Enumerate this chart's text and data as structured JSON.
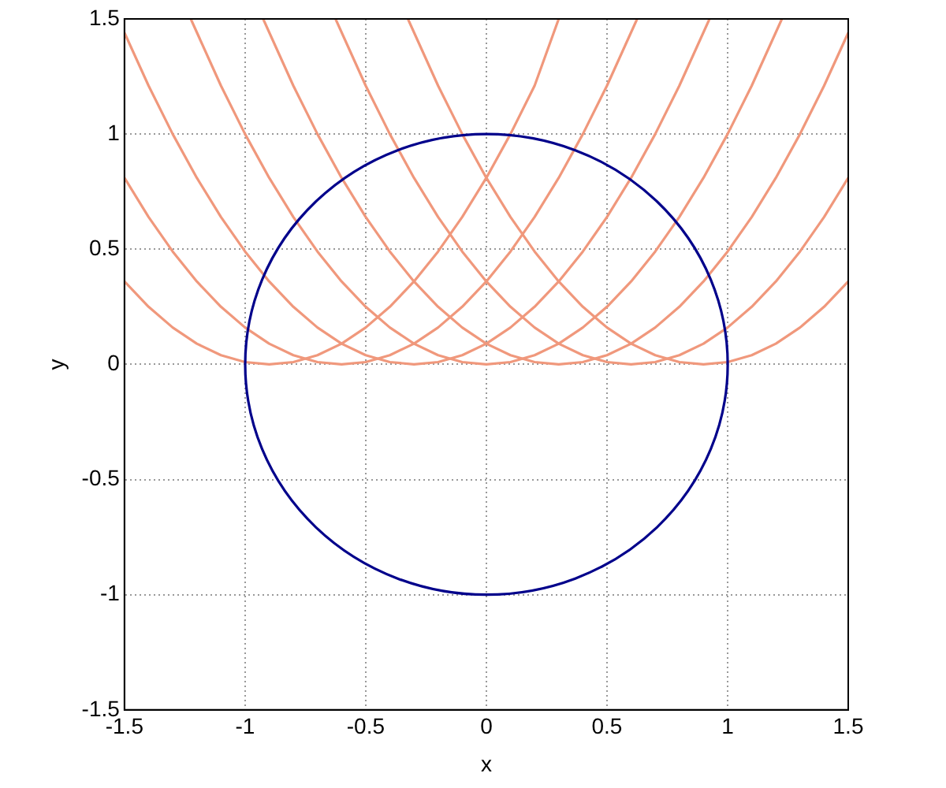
{
  "chart_data": {
    "type": "line",
    "xlabel": "x",
    "ylabel": "y",
    "xlim": [
      -1.5,
      1.5
    ],
    "ylim": [
      -1.5,
      1.5
    ],
    "xticks": [
      -1.5,
      -1,
      -0.5,
      0,
      0.5,
      1,
      1.5
    ],
    "yticks": [
      -1.5,
      -1,
      -0.5,
      0,
      0.5,
      1,
      1.5
    ],
    "grid": true,
    "legend": false,
    "marker": "none",
    "line_style": "solid",
    "series": [
      {
        "color": "#f0987c",
        "x": [
          -1.5,
          -1.4,
          -1.3,
          -1.2,
          -1.1,
          -1,
          -0.9,
          -0.8,
          -0.7,
          -0.6,
          -0.5,
          -0.4,
          -0.3,
          -0.2,
          -0.1,
          0,
          0.1,
          0.2,
          0.3
        ],
        "values": [
          0.36,
          0.25,
          0.16,
          0.09,
          0.04,
          0.01,
          0,
          0.01,
          0.04,
          0.09,
          0.16,
          0.25,
          0.36,
          0.49,
          0.64,
          0.81,
          1,
          1.21,
          1.5
        ]
      },
      {
        "color": "#f0987c",
        "x": [
          -1.5,
          -1.4,
          -1.3,
          -1.2,
          -1.1,
          -1,
          -0.9,
          -0.8,
          -0.7,
          -0.6,
          -0.5,
          -0.4,
          -0.3,
          -0.2,
          -0.1,
          0,
          0.1,
          0.2,
          0.3,
          0.4,
          0.5,
          0.625
        ],
        "values": [
          0.81,
          0.64,
          0.49,
          0.36,
          0.25,
          0.16,
          0.09,
          0.04,
          0.01,
          0,
          0.01,
          0.04,
          0.09,
          0.16,
          0.25,
          0.36,
          0.49,
          0.64,
          0.81,
          1,
          1.21,
          1.5
        ]
      },
      {
        "color": "#f0987c",
        "x": [
          -1.5,
          -1.4,
          -1.3,
          -1.2,
          -1.1,
          -1,
          -0.9,
          -0.8,
          -0.7,
          -0.6,
          -0.5,
          -0.4,
          -0.3,
          -0.2,
          -0.1,
          0,
          0.1,
          0.2,
          0.3,
          0.4,
          0.5,
          0.6,
          0.7,
          0.8,
          0.925
        ],
        "values": [
          1.44,
          1.21,
          1,
          0.81,
          0.64,
          0.49,
          0.36,
          0.25,
          0.16,
          0.09,
          0.04,
          0.01,
          0,
          0.01,
          0.04,
          0.09,
          0.16,
          0.25,
          0.36,
          0.49,
          0.64,
          0.81,
          1,
          1.21,
          1.5
        ]
      },
      {
        "color": "#f0987c",
        "x": [
          -1.225,
          -1.1,
          -1,
          -0.9,
          -0.8,
          -0.7,
          -0.6,
          -0.5,
          -0.4,
          -0.3,
          -0.2,
          -0.1,
          0,
          0.1,
          0.2,
          0.3,
          0.4,
          0.5,
          0.6,
          0.7,
          0.8,
          0.9,
          1,
          1.1,
          1.225
        ],
        "values": [
          1.5,
          1.21,
          1,
          0.81,
          0.64,
          0.49,
          0.36,
          0.25,
          0.16,
          0.09,
          0.04,
          0.01,
          0,
          0.01,
          0.04,
          0.09,
          0.16,
          0.25,
          0.36,
          0.49,
          0.64,
          0.81,
          1,
          1.21,
          1.5
        ]
      },
      {
        "color": "#f0987c",
        "x": [
          -0.925,
          -0.8,
          -0.7,
          -0.6,
          -0.5,
          -0.4,
          -0.3,
          -0.2,
          -0.1,
          0,
          0.1,
          0.2,
          0.3,
          0.4,
          0.5,
          0.6,
          0.7,
          0.8,
          0.9,
          1,
          1.1,
          1.2,
          1.3,
          1.4,
          1.5
        ],
        "values": [
          1.5,
          1.21,
          1,
          0.81,
          0.64,
          0.49,
          0.36,
          0.25,
          0.16,
          0.09,
          0.04,
          0.01,
          0,
          0.01,
          0.04,
          0.09,
          0.16,
          0.25,
          0.36,
          0.49,
          0.64,
          0.81,
          1,
          1.21,
          1.44
        ]
      },
      {
        "color": "#f0987c",
        "x": [
          -0.625,
          -0.5,
          -0.4,
          -0.3,
          -0.2,
          -0.1,
          0,
          0.1,
          0.2,
          0.3,
          0.4,
          0.5,
          0.6,
          0.7,
          0.8,
          0.9,
          1,
          1.1,
          1.2,
          1.3,
          1.4,
          1.5
        ],
        "values": [
          1.5,
          1.21,
          1,
          0.81,
          0.64,
          0.49,
          0.36,
          0.25,
          0.16,
          0.09,
          0.04,
          0.01,
          0,
          0.01,
          0.04,
          0.09,
          0.16,
          0.25,
          0.36,
          0.49,
          0.64,
          0.81
        ]
      },
      {
        "color": "#f0987c",
        "x": [
          -0.325,
          -0.2,
          -0.1,
          0,
          0.1,
          0.2,
          0.3,
          0.4,
          0.5,
          0.6,
          0.7,
          0.8,
          0.9,
          1,
          1.1,
          1.2,
          1.3,
          1.4,
          1.5
        ],
        "values": [
          1.5,
          1.21,
          1,
          0.81,
          0.64,
          0.49,
          0.36,
          0.25,
          0.16,
          0.09,
          0.04,
          0.01,
          0,
          0.01,
          0.04,
          0.09,
          0.16,
          0.25,
          0.36
        ]
      }
    ]
  }
}
